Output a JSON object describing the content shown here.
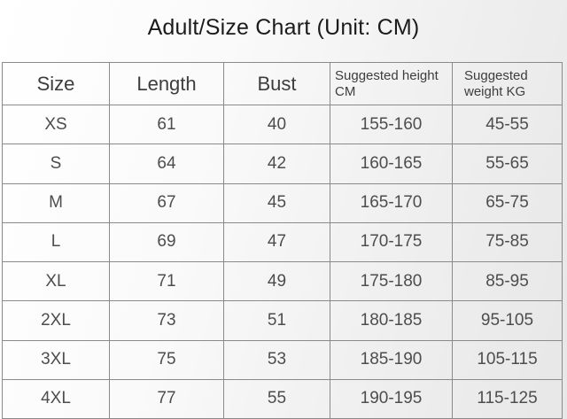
{
  "title": "Adult/Size Chart (Unit: CM)",
  "table": {
    "headers": [
      "Size",
      "Length",
      "Bust",
      "Suggested height CM",
      "Suggested weight KG"
    ],
    "rows": [
      [
        "XS",
        "61",
        "40",
        "155-160",
        "45-55"
      ],
      [
        "S",
        "64",
        "42",
        "160-165",
        "55-65"
      ],
      [
        "M",
        "67",
        "45",
        "165-170",
        "65-75"
      ],
      [
        "L",
        "69",
        "47",
        "170-175",
        "75-85"
      ],
      [
        "XL",
        "71",
        "49",
        "175-180",
        "85-95"
      ],
      [
        "2XL",
        "73",
        "51",
        "180-185",
        "95-105"
      ],
      [
        "3XL",
        "75",
        "53",
        "185-190",
        "105-115"
      ],
      [
        "4XL",
        "77",
        "55",
        "190-195",
        "115-125"
      ]
    ]
  },
  "colors": {
    "title_text": "#1b1b1b",
    "header_text": "#3d3d3d",
    "cell_text": "#4d4d4d",
    "border": "#8a8a8a",
    "background_start": "#ffffff",
    "background_end": "#e7e7e7"
  }
}
